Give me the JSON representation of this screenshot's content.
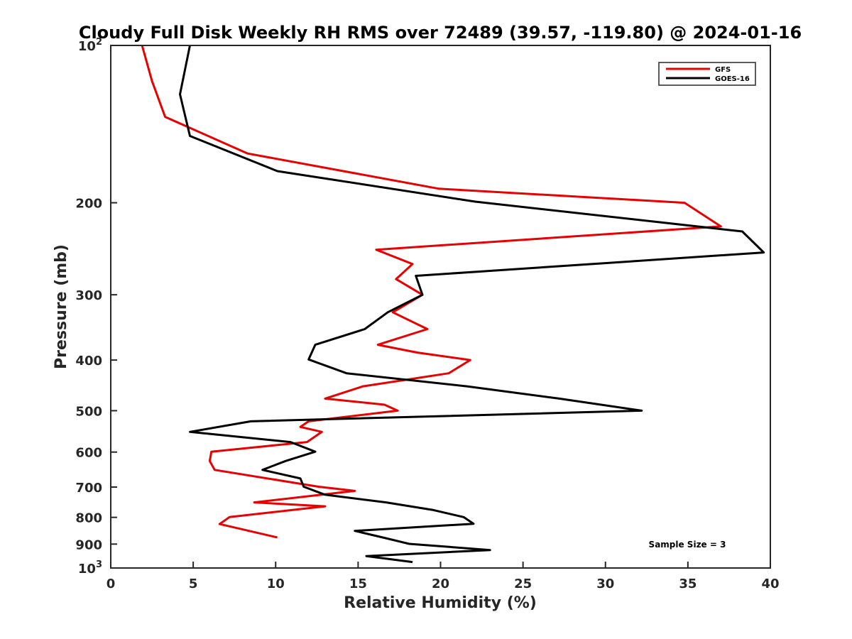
{
  "chart_data": {
    "type": "line",
    "title": "Cloudy Full Disk Weekly RH RMS over 72489 (39.57, -119.80) @ 2024-01-16",
    "xlabel": "Relative Humidity (%)",
    "ylabel": "Pressure (mb)",
    "xlim": [
      0,
      40
    ],
    "ylim": [
      100,
      1000
    ],
    "y_scale": "log",
    "y_inverted": true,
    "grid": false,
    "legend_position": "top-right",
    "x_ticks": [
      "0",
      "5",
      "10",
      "15",
      "20",
      "25",
      "30",
      "35",
      "40"
    ],
    "y_ticks": [
      {
        "value": 100,
        "base": "10",
        "exp": "2"
      },
      {
        "value": 200,
        "label": "200"
      },
      {
        "value": 300,
        "label": "300"
      },
      {
        "value": 400,
        "label": "400"
      },
      {
        "value": 500,
        "label": "500"
      },
      {
        "value": 600,
        "label": "600"
      },
      {
        "value": 700,
        "label": "700"
      },
      {
        "value": 800,
        "label": "800"
      },
      {
        "value": 900,
        "label": "900"
      },
      {
        "value": 1000,
        "base": "10",
        "exp": "3"
      }
    ],
    "series": [
      {
        "name": "GFS",
        "color": "#e60000",
        "points": [
          [
            1.9,
            100
          ],
          [
            2.5,
            117
          ],
          [
            3.3,
            137
          ],
          [
            8.3,
            161
          ],
          [
            19.9,
            188
          ],
          [
            34.8,
            200
          ],
          [
            37.0,
            222
          ],
          [
            16.1,
            246
          ],
          [
            18.3,
            262
          ],
          [
            17.3,
            280
          ],
          [
            18.9,
            300
          ],
          [
            17.1,
            324
          ],
          [
            19.2,
            349
          ],
          [
            16.2,
            374
          ],
          [
            18.6,
            387
          ],
          [
            21.8,
            400
          ],
          [
            20.5,
            424
          ],
          [
            15.3,
            449
          ],
          [
            13.0,
            474
          ],
          [
            16.6,
            487
          ],
          [
            17.4,
            500
          ],
          [
            12.0,
            524
          ],
          [
            11.5,
            537
          ],
          [
            12.8,
            549
          ],
          [
            11.9,
            574
          ],
          [
            6.1,
            599
          ],
          [
            6.0,
            624
          ],
          [
            6.3,
            649
          ],
          [
            12.6,
            699
          ],
          [
            14.8,
            712
          ],
          [
            8.7,
            749
          ],
          [
            13.0,
            762
          ],
          [
            7.2,
            799
          ],
          [
            6.6,
            824
          ],
          [
            10.1,
            874
          ]
        ]
      },
      {
        "name": "GOES-16",
        "color": "#000000",
        "points": [
          [
            4.8,
            100
          ],
          [
            4.2,
            124
          ],
          [
            4.8,
            149
          ],
          [
            10.1,
            174
          ],
          [
            22.1,
            199
          ],
          [
            38.3,
            227
          ],
          [
            39.6,
            249
          ],
          [
            18.5,
            276
          ],
          [
            18.9,
            300
          ],
          [
            16.8,
            324
          ],
          [
            15.4,
            349
          ],
          [
            12.4,
            374
          ],
          [
            12.0,
            399
          ],
          [
            14.3,
            424
          ],
          [
            21.6,
            449
          ],
          [
            27.2,
            474
          ],
          [
            32.2,
            500
          ],
          [
            8.5,
            524
          ],
          [
            4.8,
            549
          ],
          [
            10.9,
            574
          ],
          [
            12.4,
            599
          ],
          [
            10.6,
            624
          ],
          [
            9.2,
            649
          ],
          [
            11.5,
            674
          ],
          [
            11.7,
            699
          ],
          [
            13.0,
            724
          ],
          [
            16.7,
            749
          ],
          [
            19.5,
            774
          ],
          [
            21.4,
            799
          ],
          [
            22.0,
            823
          ],
          [
            14.8,
            849
          ],
          [
            16.5,
            874
          ],
          [
            18.1,
            899
          ],
          [
            23.0,
            924
          ],
          [
            15.5,
            949
          ],
          [
            18.3,
            974
          ]
        ]
      }
    ],
    "annotation": "Sample Size = 3"
  }
}
